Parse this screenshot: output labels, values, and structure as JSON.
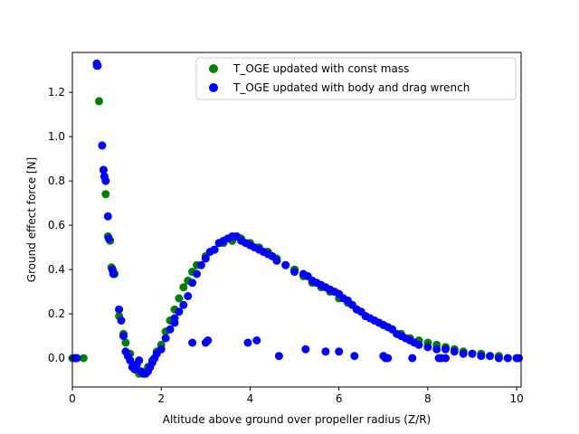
{
  "chart_data": {
    "type": "scatter",
    "title": "",
    "xlabel": "Altitude above ground over propeller radius (Z/R)",
    "ylabel": "Ground effect force [N]",
    "xlim": [
      0,
      10.1
    ],
    "ylim": [
      -0.13,
      1.38
    ],
    "xticks": [
      0,
      2,
      4,
      6,
      8,
      10
    ],
    "yticks": [
      0.0,
      0.2,
      0.4,
      0.6,
      0.8,
      1.0,
      1.2
    ],
    "xtick_labels": [
      "0",
      "2",
      "4",
      "6",
      "8",
      "10"
    ],
    "ytick_labels": [
      "0.0",
      "0.2",
      "0.4",
      "0.6",
      "0.8",
      "1.0",
      "1.2"
    ],
    "grid": false,
    "legend_position": "top-right",
    "series": [
      {
        "name": "T_OGE updated with const mass",
        "color": "#008000",
        "x": [
          0.0,
          0.1,
          0.25,
          0.55,
          0.6,
          0.7,
          0.75,
          0.8,
          0.85,
          0.88,
          0.92,
          0.95,
          1.05,
          1.15,
          1.2,
          1.3,
          1.4,
          1.5,
          1.6,
          1.7,
          1.8,
          1.9,
          2.0,
          2.1,
          2.2,
          2.3,
          2.4,
          2.5,
          2.6,
          2.7,
          2.8,
          3.0,
          3.2,
          3.4,
          3.6,
          3.8,
          4.0,
          4.2,
          4.4,
          4.6,
          4.8,
          5.0,
          5.2,
          5.4,
          5.6,
          5.8,
          6.0,
          6.2,
          6.4,
          6.6,
          6.8,
          7.0,
          7.2,
          7.4,
          7.6,
          7.8,
          8.0,
          8.2,
          8.4,
          8.6,
          8.8,
          9.0,
          9.2,
          9.4,
          9.6,
          9.8,
          10.0
        ],
        "y": [
          0.0,
          0.0,
          0.0,
          1.32,
          1.16,
          0.85,
          0.74,
          0.55,
          0.53,
          0.41,
          0.39,
          0.38,
          0.19,
          0.11,
          0.07,
          0.02,
          -0.03,
          -0.07,
          -0.07,
          -0.04,
          -0.01,
          0.03,
          0.06,
          0.12,
          0.17,
          0.22,
          0.27,
          0.32,
          0.35,
          0.39,
          0.42,
          0.46,
          0.49,
          0.52,
          0.53,
          0.54,
          0.52,
          0.5,
          0.48,
          0.45,
          0.42,
          0.4,
          0.37,
          0.34,
          0.32,
          0.3,
          0.27,
          0.25,
          0.22,
          0.19,
          0.17,
          0.15,
          0.13,
          0.11,
          0.09,
          0.08,
          0.07,
          0.06,
          0.05,
          0.04,
          0.03,
          0.02,
          0.02,
          0.01,
          0.01,
          0.0,
          0.0
        ]
      },
      {
        "name": "T_OGE updated with body and drag wrench",
        "color": "#0000ff",
        "x": [
          0.05,
          0.1,
          0.55,
          0.57,
          0.67,
          0.7,
          0.72,
          0.75,
          0.8,
          0.82,
          0.9,
          0.92,
          1.05,
          1.1,
          1.15,
          1.2,
          1.25,
          1.3,
          1.35,
          1.4,
          1.45,
          1.5,
          1.55,
          1.6,
          1.65,
          1.7,
          1.75,
          1.8,
          1.85,
          1.9,
          2.0,
          2.1,
          2.2,
          2.3,
          2.4,
          2.5,
          2.6,
          2.7,
          2.8,
          2.9,
          3.0,
          3.1,
          3.2,
          3.3,
          3.4,
          3.5,
          3.6,
          3.7,
          3.8,
          3.9,
          4.0,
          4.1,
          4.2,
          4.3,
          4.4,
          4.5,
          4.6,
          4.8,
          5.0,
          5.2,
          5.3,
          5.4,
          5.5,
          5.6,
          5.7,
          5.8,
          5.9,
          6.0,
          6.1,
          6.2,
          6.3,
          6.4,
          6.5,
          6.6,
          6.7,
          6.8,
          6.9,
          7.0,
          7.1,
          7.2,
          7.3,
          7.4,
          7.5,
          7.6,
          7.7,
          7.8,
          8.0,
          8.2,
          8.4,
          8.6,
          8.8,
          9.0,
          9.2,
          9.4,
          9.6,
          9.8,
          10.0,
          10.05,
          2.3,
          2.7,
          3.0,
          3.05,
          3.95,
          4.15,
          4.65,
          5.25,
          5.7,
          6.0,
          6.35,
          7.0,
          7.05,
          7.1,
          7.65,
          8.25,
          8.3,
          8.4
        ],
        "y": [
          0.0,
          0.0,
          1.33,
          1.32,
          0.96,
          0.85,
          0.82,
          0.8,
          0.64,
          0.54,
          0.4,
          0.38,
          0.22,
          0.17,
          0.1,
          0.03,
          0.01,
          -0.01,
          -0.04,
          -0.05,
          -0.03,
          -0.01,
          -0.06,
          -0.07,
          -0.07,
          -0.06,
          -0.04,
          -0.02,
          0.0,
          0.02,
          0.04,
          0.09,
          0.13,
          0.18,
          0.21,
          0.24,
          0.28,
          0.34,
          0.38,
          0.42,
          0.45,
          0.48,
          0.49,
          0.52,
          0.53,
          0.54,
          0.55,
          0.55,
          0.53,
          0.52,
          0.51,
          0.5,
          0.49,
          0.48,
          0.47,
          0.46,
          0.44,
          0.42,
          0.39,
          0.38,
          0.37,
          0.35,
          0.34,
          0.33,
          0.32,
          0.31,
          0.3,
          0.29,
          0.27,
          0.26,
          0.24,
          0.22,
          0.21,
          0.19,
          0.18,
          0.17,
          0.16,
          0.15,
          0.14,
          0.13,
          0.11,
          0.1,
          0.09,
          0.08,
          0.07,
          0.06,
          0.05,
          0.04,
          0.04,
          0.03,
          0.02,
          0.02,
          0.01,
          0.01,
          0.0,
          0.0,
          0.0,
          0.0,
          0.16,
          0.07,
          0.07,
          0.08,
          0.07,
          0.08,
          0.01,
          0.04,
          0.03,
          0.03,
          0.01,
          0.01,
          0.0,
          0.0,
          0.0,
          0.0,
          0.0,
          0.0
        ]
      }
    ]
  }
}
